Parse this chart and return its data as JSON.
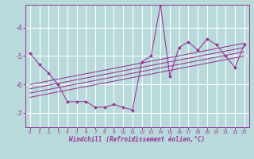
{
  "x": [
    0,
    1,
    2,
    3,
    4,
    5,
    6,
    7,
    8,
    9,
    10,
    11,
    12,
    13,
    14,
    15,
    16,
    17,
    18,
    19,
    20,
    21,
    22,
    23
  ],
  "y_main": [
    -4.9,
    -5.3,
    -5.6,
    -6.0,
    -6.6,
    -6.6,
    -6.6,
    -6.8,
    -6.8,
    -6.7,
    -6.8,
    -6.9,
    -5.2,
    -5.0,
    -3.2,
    -5.7,
    -4.7,
    -4.5,
    -4.8,
    -4.4,
    -4.6,
    -5.0,
    -5.4,
    -4.6
  ],
  "line_color": "#993399",
  "marker_color": "#993399",
  "bg_color": "#b8dada",
  "grid_color": "#ffffff",
  "axis_color": "#993399",
  "xlim": [
    -0.5,
    23.5
  ],
  "ylim": [
    -7.5,
    -3.2
  ],
  "yticks": [
    -7,
    -6,
    -5,
    -4
  ],
  "xticks": [
    0,
    1,
    2,
    3,
    4,
    5,
    6,
    7,
    8,
    9,
    10,
    11,
    12,
    13,
    14,
    15,
    16,
    17,
    18,
    19,
    20,
    21,
    22,
    23
  ],
  "xlabel": "Windchill (Refroidissement éolien,°C)",
  "regression_lines": [
    {
      "x0": 0,
      "y0": -6.0,
      "x1": 23,
      "y1": -4.55
    },
    {
      "x0": 0,
      "y0": -6.15,
      "x1": 23,
      "y1": -4.7
    },
    {
      "x0": 0,
      "y0": -6.3,
      "x1": 23,
      "y1": -4.85
    },
    {
      "x0": 0,
      "y0": -6.45,
      "x1": 23,
      "y1": -5.0
    }
  ]
}
